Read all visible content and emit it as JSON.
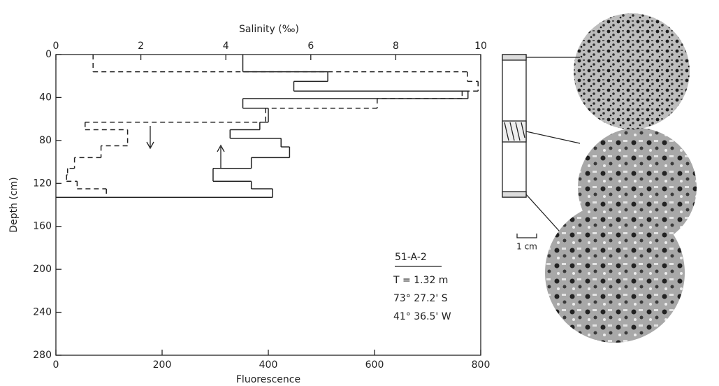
{
  "chart_data": {
    "type": "step",
    "title": "Salinity (‰)",
    "xlabel": "Fluorescence",
    "ylabel": "Depth (cm)",
    "xlim": [
      0,
      800
    ],
    "xticks": [
      0,
      200,
      400,
      600,
      800
    ],
    "x2lim": [
      0,
      10
    ],
    "x2ticks": [
      0,
      2,
      4,
      6,
      8,
      10
    ],
    "ylim": [
      0,
      280
    ],
    "yticks": [
      0,
      40,
      80,
      120,
      160,
      200,
      240,
      280
    ],
    "y_inverted": true,
    "series": [
      {
        "color": "#222",
        "style": "solid",
        "axis": "x2",
        "depths": [
          0,
          16,
          25,
          34,
          41,
          50,
          63,
          70,
          78,
          86,
          96,
          106,
          118,
          125,
          133
        ],
        "values": [
          4.4,
          6.4,
          5.6,
          9.7,
          4.4,
          5.0,
          4.8,
          4.1,
          5.3,
          5.5,
          4.6,
          3.7,
          4.6,
          5.1
        ]
      },
      {
        "color": "#222",
        "style": "dashed",
        "axis": "x",
        "depths": [
          0,
          16,
          25,
          34,
          41,
          50,
          63,
          70,
          85,
          96,
          106,
          112,
          118,
          125,
          133
        ],
        "values": [
          70,
          775,
          795,
          765,
          605,
          395,
          55,
          135,
          85,
          35,
          22,
          20,
          40,
          95
        ]
      }
    ],
    "annotation": {
      "title": "51-A-2",
      "lines": [
        "T = 1.32 m",
        "73° 27.2' S",
        "41° 36.5' W"
      ]
    },
    "scale_label": "1 cm"
  }
}
